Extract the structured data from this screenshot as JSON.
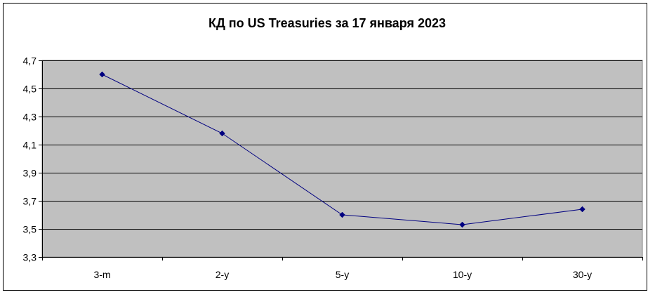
{
  "chart_data": {
    "type": "line",
    "title": "КД по US Treasuries за 17 января 2023",
    "xlabel": "",
    "ylabel": "",
    "categories": [
      "3-m",
      "2-y",
      "5-y",
      "10-y",
      "30-y"
    ],
    "series": [
      {
        "values": [
          4.6,
          4.18,
          3.6,
          3.53,
          3.64
        ]
      }
    ],
    "ylim": [
      3.3,
      4.7
    ],
    "yticks": [
      3.3,
      3.5,
      3.7,
      3.9,
      4.1,
      4.3,
      4.5,
      4.7
    ],
    "ytick_labels": [
      "3,3",
      "3,5",
      "3,7",
      "3,9",
      "4,1",
      "4,3",
      "4,5",
      "4,7"
    ],
    "grid": true,
    "legend": "none",
    "colors": {
      "plot_background": "#c0c0c0",
      "line": "#000080",
      "marker": "#000080",
      "gridline": "#000000"
    }
  }
}
